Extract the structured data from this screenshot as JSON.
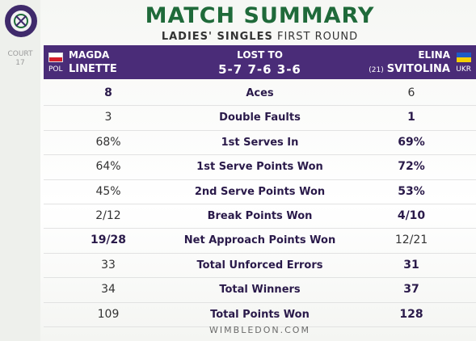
{
  "court": {
    "label": "COURT",
    "number": "17"
  },
  "title": "MATCH SUMMARY",
  "subtitle": {
    "bold": "LADIES' SINGLES",
    "rest": " FIRST ROUND"
  },
  "header": {
    "player1": {
      "first": "MAGDA",
      "last": "LINETTE",
      "country": "POL"
    },
    "result_label": "LOST TO",
    "score": "5-7 7-6 3-6",
    "player2": {
      "first": "ELINA",
      "seed": "(21)",
      "last": "SVITOLINA",
      "country": "UKR"
    }
  },
  "stats": [
    {
      "left": "8",
      "label": "Aces",
      "right": "6",
      "left_bold": true,
      "right_bold": false
    },
    {
      "left": "3",
      "label": "Double Faults",
      "right": "1",
      "left_bold": false,
      "right_bold": true
    },
    {
      "left": "68%",
      "label": "1st Serves In",
      "right": "69%",
      "left_bold": false,
      "right_bold": true
    },
    {
      "left": "64%",
      "label": "1st Serve Points Won",
      "right": "72%",
      "left_bold": false,
      "right_bold": true
    },
    {
      "left": "45%",
      "label": "2nd Serve Points Won",
      "right": "53%",
      "left_bold": false,
      "right_bold": true
    },
    {
      "left": "2/12",
      "label": "Break Points Won",
      "right": "4/10",
      "left_bold": false,
      "right_bold": true
    },
    {
      "left": "19/28",
      "label": "Net Approach Points Won",
      "right": "12/21",
      "left_bold": true,
      "right_bold": false
    },
    {
      "left": "33",
      "label": "Total Unforced Errors",
      "right": "31",
      "left_bold": false,
      "right_bold": true
    },
    {
      "left": "34",
      "label": "Total Winners",
      "right": "37",
      "left_bold": false,
      "right_bold": true
    },
    {
      "left": "109",
      "label": "Total Points Won",
      "right": "128",
      "left_bold": false,
      "right_bold": true
    }
  ],
  "footer": "WIMBLEDON.COM",
  "colors": {
    "title_green": "#1f6a3a",
    "header_purple": "#4a2c78"
  }
}
